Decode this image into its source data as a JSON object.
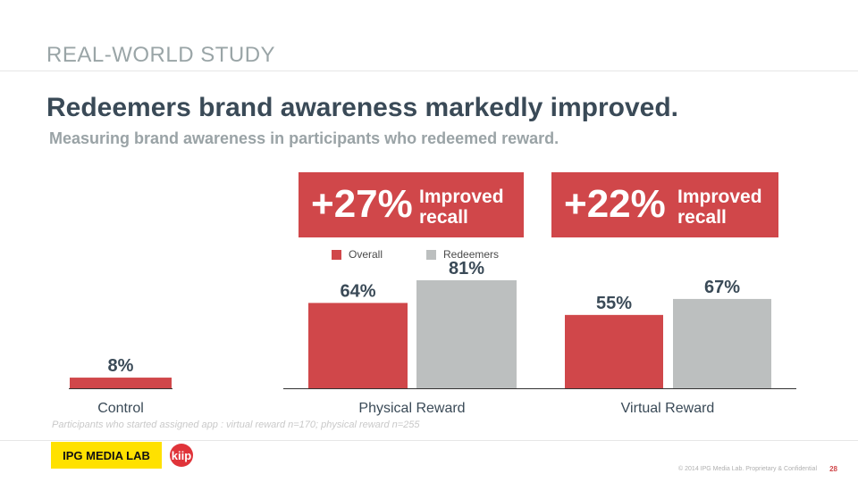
{
  "header": {
    "section": "REAL-WORLD STUDY",
    "title": "Redeemers brand awareness markedly improved.",
    "subtitle": "Measuring brand awareness in participants who redeemed reward."
  },
  "callouts": [
    {
      "value": "+27%",
      "line1": "Improved",
      "line2": "recall"
    },
    {
      "value": "+22%",
      "line1": "Improved",
      "line2": "recall"
    }
  ],
  "colors": {
    "overall": "#d0474a",
    "redeemers": "#bcbfbf",
    "axis": "#333333",
    "label": "#3a4a57"
  },
  "chart_data": {
    "type": "bar",
    "title": "",
    "categories": [
      "Control",
      "Physical Reward",
      "Virtual Reward"
    ],
    "series": [
      {
        "name": "Overall",
        "values": [
          8,
          64,
          55
        ],
        "labels": [
          "8%",
          "64%",
          "55%"
        ]
      },
      {
        "name": "Redeemers",
        "values": [
          null,
          81,
          67
        ],
        "labels": [
          "",
          "81%",
          "67%"
        ]
      }
    ],
    "ylim": [
      0,
      100
    ],
    "legend": "top"
  },
  "footer": {
    "note": "Participants who started assigned app : virtual reward n=170; physical reward n=255",
    "brand": "IPG MEDIA LAB",
    "partner": "kiip",
    "copyright": "© 2014 IPG Media Lab. Proprietary & Confidential",
    "page": "28"
  }
}
